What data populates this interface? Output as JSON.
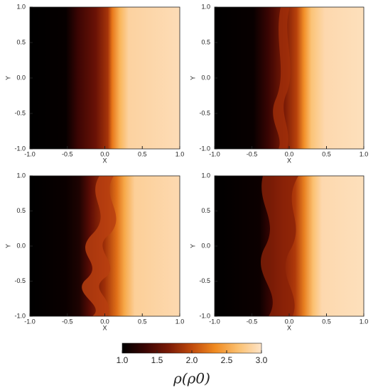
{
  "chart_data": [
    {
      "type": "heatmap",
      "xlabel": "X",
      "ylabel": "Y",
      "xlim": [
        -1,
        1
      ],
      "ylim": [
        -1,
        1
      ],
      "xticks": [
        {
          "value": -1,
          "label": "-1.0"
        },
        {
          "value": -0.5,
          "label": "-0.5"
        },
        {
          "value": 0,
          "label": "0.0"
        },
        {
          "value": 0.5,
          "label": "0.5"
        },
        {
          "value": 1,
          "label": "1.0"
        }
      ],
      "yticks": [
        {
          "value": -1,
          "label": "-1.0"
        },
        {
          "value": -0.5,
          "label": "-0.5"
        },
        {
          "value": 0,
          "label": "0.0"
        },
        {
          "value": 0.5,
          "label": "0.5"
        },
        {
          "value": 1,
          "label": "1.0"
        }
      ]
    },
    {
      "type": "heatmap",
      "xlabel": "X",
      "ylabel": "Y",
      "xlim": [
        -1,
        1
      ],
      "ylim": [
        -1,
        1
      ],
      "xticks": [
        {
          "value": -1,
          "label": "-1.0"
        },
        {
          "value": -0.5,
          "label": "-0.5"
        },
        {
          "value": 0,
          "label": "0.0"
        },
        {
          "value": 0.5,
          "label": "0.5"
        },
        {
          "value": 1,
          "label": "1.0"
        }
      ],
      "yticks": [
        {
          "value": -1,
          "label": "-1.0"
        },
        {
          "value": -0.5,
          "label": "-0.5"
        },
        {
          "value": 0,
          "label": "0.0"
        },
        {
          "value": 0.5,
          "label": "0.5"
        },
        {
          "value": 1,
          "label": "1.0"
        }
      ]
    },
    {
      "type": "heatmap",
      "xlabel": "X",
      "ylabel": "Y",
      "xlim": [
        -1,
        1
      ],
      "ylim": [
        -1,
        1
      ],
      "xticks": [
        {
          "value": -1,
          "label": "-1.0"
        },
        {
          "value": -0.5,
          "label": "-0.5"
        },
        {
          "value": 0,
          "label": "0.0"
        },
        {
          "value": 0.5,
          "label": "0.5"
        },
        {
          "value": 1,
          "label": "1.0"
        }
      ],
      "yticks": [
        {
          "value": -1,
          "label": "-1.0"
        },
        {
          "value": -0.5,
          "label": "-0.5"
        },
        {
          "value": 0,
          "label": "0.0"
        },
        {
          "value": 0.5,
          "label": "0.5"
        },
        {
          "value": 1,
          "label": "1.0"
        }
      ]
    },
    {
      "type": "heatmap",
      "xlabel": "X",
      "ylabel": "Y",
      "xlim": [
        -1,
        1
      ],
      "ylim": [
        -1,
        1
      ],
      "xticks": [
        {
          "value": -1,
          "label": "-1.0"
        },
        {
          "value": -0.5,
          "label": "-0.5"
        },
        {
          "value": 0,
          "label": "0.0"
        },
        {
          "value": 0.5,
          "label": "0.5"
        },
        {
          "value": 1,
          "label": "1.0"
        }
      ],
      "yticks": [
        {
          "value": -1,
          "label": "-1.0"
        },
        {
          "value": -0.5,
          "label": "-0.5"
        },
        {
          "value": 0,
          "label": "0.0"
        },
        {
          "value": 0.5,
          "label": "0.5"
        },
        {
          "value": 1,
          "label": "1.0"
        }
      ]
    },
    {
      "type": "colorbar",
      "label": "ρ(ρ0)",
      "lim": [
        1,
        3
      ],
      "colors": [
        "#000000",
        "#3a0503",
        "#7a1a06",
        "#c04a0c",
        "#f08a20",
        "#fbc070",
        "#fde4c8"
      ],
      "ticks": [
        {
          "value": 1,
          "label": "1.0"
        },
        {
          "value": 1.5,
          "label": "1.5"
        },
        {
          "value": 2,
          "label": "2.0"
        },
        {
          "value": 2.5,
          "label": "2.5"
        },
        {
          "value": 3,
          "label": "3.0"
        }
      ]
    }
  ]
}
